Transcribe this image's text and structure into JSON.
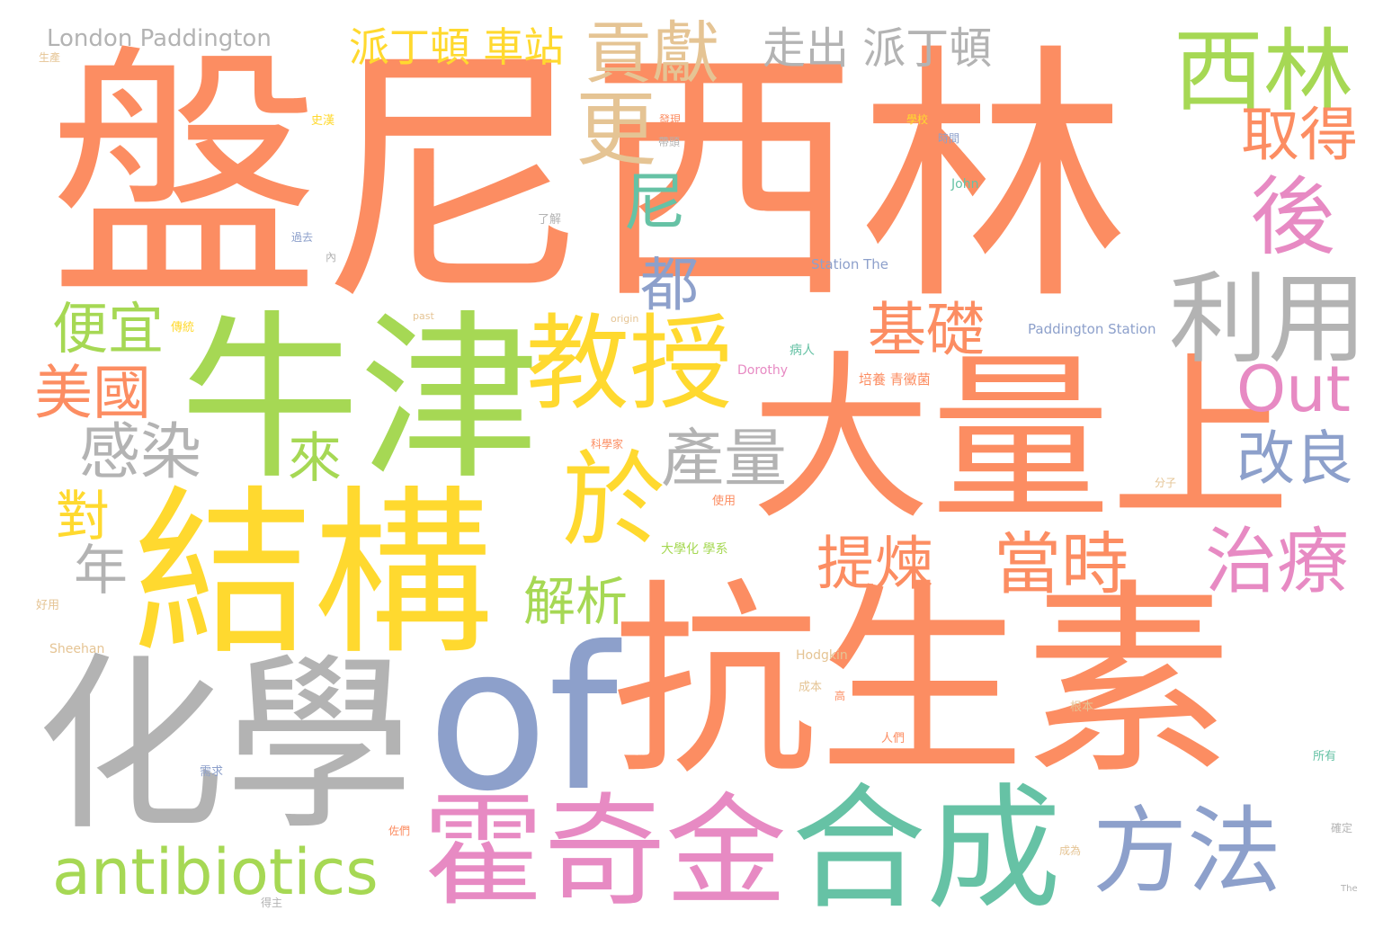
{
  "wordcloud": {
    "background": "#ffffff",
    "palette": {
      "orange": "#fc8d62",
      "green": "#a6d854",
      "yellow": "#ffd92f",
      "grey": "#b3b3b3",
      "blue": "#8da0cb",
      "pink": "#e78ac3",
      "teal": "#66c2a5",
      "tan": "#e5c494"
    },
    "words": [
      "盤尼西林",
      "大量上",
      "抗生素",
      "化學",
      "of",
      "牛津",
      "結構",
      "霍奇金",
      "合成",
      "教授",
      "方法",
      "於",
      "antibiotics",
      "西林",
      "利用",
      "後",
      "Out",
      "貢獻",
      "更",
      "取得",
      "派丁頓 車站",
      "走出 派丁頓",
      "London Paddington",
      "尼",
      "都",
      "基礎",
      "產量",
      "感染",
      "來",
      "美國",
      "便宜",
      "改良",
      "對",
      "年",
      "提煉",
      "當時",
      "治療",
      "解析",
      "Station The",
      "Paddington Station",
      "John",
      "Dorothy",
      "Hodgkin",
      "Sheehan",
      "培養 青黴菌",
      "大學化 學系",
      "科學家",
      "病人",
      "好用",
      "成本",
      "人們",
      "使用",
      "分子",
      "需求",
      "根本",
      "所有",
      "確定",
      "成為",
      "傳統",
      "內",
      "生產",
      "史漢",
      "發現",
      "帶頭",
      "了解",
      "時間",
      "學校",
      "過去",
      "past",
      "origin",
      "The",
      "高",
      "得主",
      "佐們"
    ]
  }
}
